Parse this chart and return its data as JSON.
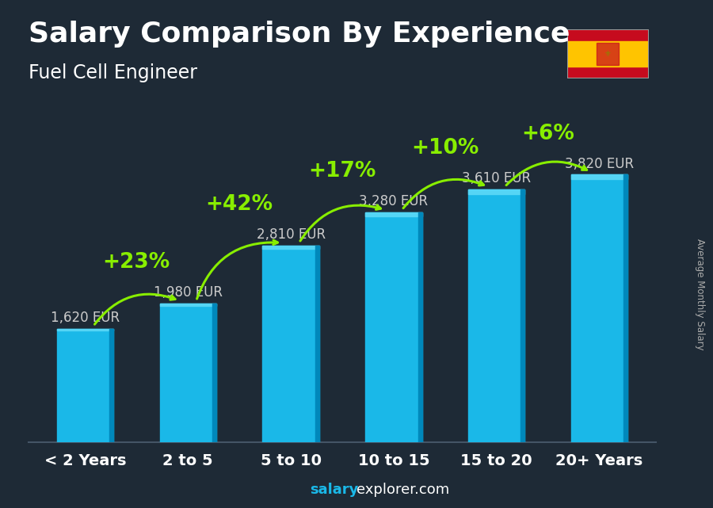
{
  "title": "Salary Comparison By Experience",
  "subtitle": "Fuel Cell Engineer",
  "ylabel_right": "Average Monthly Salary",
  "footer_salary": "salary",
  "footer_rest": "explorer.com",
  "categories": [
    "< 2 Years",
    "2 to 5",
    "5 to 10",
    "10 to 15",
    "15 to 20",
    "20+ Years"
  ],
  "values": [
    1620,
    1980,
    2810,
    3280,
    3610,
    3820
  ],
  "labels": [
    "1,620 EUR",
    "1,980 EUR",
    "2,810 EUR",
    "3,280 EUR",
    "3,610 EUR",
    "3,820 EUR"
  ],
  "pct_labels": [
    "+23%",
    "+42%",
    "+17%",
    "+10%",
    "+6%"
  ],
  "bar_color_main": "#1ab8e8",
  "bar_color_light": "#55d5f5",
  "bar_color_dark": "#0088bb",
  "bg_color": "#1e2a36",
  "title_color": "#FFFFFF",
  "subtitle_color": "#FFFFFF",
  "label_color": "#cccccc",
  "pct_color": "#88ee00",
  "category_color": "#FFFFFF",
  "footer_salary_color": "#1ab8e8",
  "footer_rest_color": "#FFFFFF",
  "ylim": [
    0,
    4500
  ],
  "title_fontsize": 26,
  "subtitle_fontsize": 17,
  "category_fontsize": 14,
  "value_fontsize": 12,
  "pct_fontsize": 19,
  "bar_width": 0.55
}
